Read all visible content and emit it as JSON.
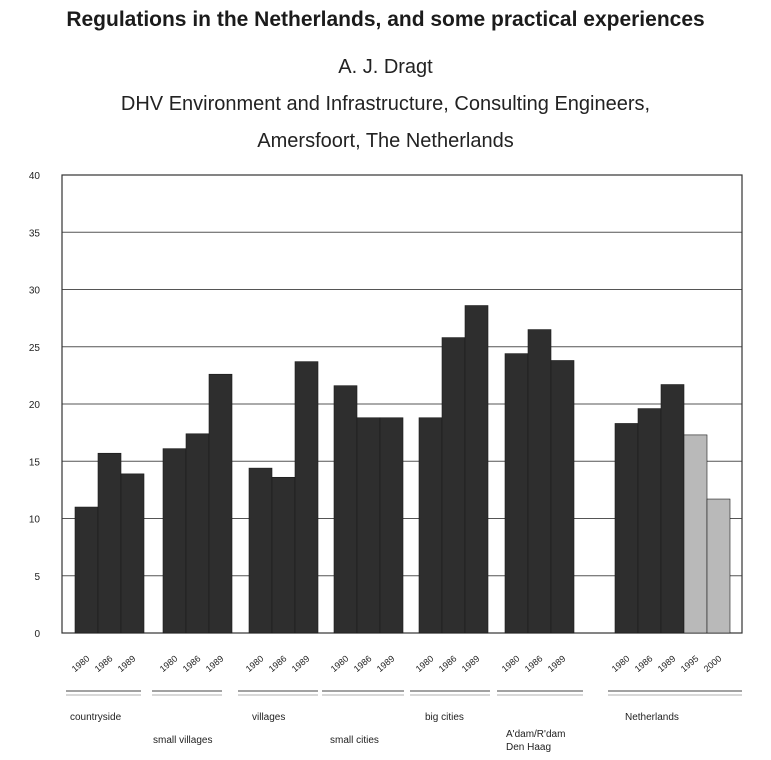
{
  "header": {
    "title": "Regulations in the Netherlands, and some practical experiences",
    "author": "A. J. Dragt",
    "affiliation_line1": "DHV Environment and Infrastructure, Consulting Engineers,",
    "affiliation_line2": "Amersfoort, The Netherlands"
  },
  "chart_data": {
    "type": "bar",
    "ylim": [
      0,
      40
    ],
    "yticks": [
      0,
      5,
      10,
      15,
      20,
      25,
      30,
      35,
      40
    ],
    "grid": true,
    "colors": {
      "measured": "#2e2e2e",
      "projected": "#b9b9b9"
    },
    "groups": [
      {
        "label": "countryside",
        "bars": [
          {
            "year": "1980",
            "value": 11.0
          },
          {
            "year": "1986",
            "value": 15.7
          },
          {
            "year": "1989",
            "value": 13.9
          }
        ]
      },
      {
        "label": "small villages",
        "bars": [
          {
            "year": "1980",
            "value": 16.1
          },
          {
            "year": "1986",
            "value": 17.4
          },
          {
            "year": "1989",
            "value": 22.6
          }
        ]
      },
      {
        "label": "villages",
        "bars": [
          {
            "year": "1980",
            "value": 14.4
          },
          {
            "year": "1986",
            "value": 13.6
          },
          {
            "year": "1989",
            "value": 23.7
          }
        ]
      },
      {
        "label": "small cities",
        "bars": [
          {
            "year": "1980",
            "value": 21.6
          },
          {
            "year": "1986",
            "value": 18.8
          },
          {
            "year": "1989",
            "value": 18.8
          }
        ]
      },
      {
        "label": "big cities",
        "bars": [
          {
            "year": "1980",
            "value": 18.8
          },
          {
            "year": "1986",
            "value": 25.8
          },
          {
            "year": "1989",
            "value": 28.6
          }
        ]
      },
      {
        "label": "A'dam/R'dam Den Haag",
        "bars": [
          {
            "year": "1980",
            "value": 24.4
          },
          {
            "year": "1986",
            "value": 26.5
          },
          {
            "year": "1989",
            "value": 23.8
          }
        ]
      },
      {
        "label": "Netherlands",
        "bars": [
          {
            "year": "1980",
            "value": 18.3
          },
          {
            "year": "1986",
            "value": 19.6
          },
          {
            "year": "1989",
            "value": 21.7
          },
          {
            "year": "1995",
            "value": 17.3,
            "projected": true
          },
          {
            "year": "2000",
            "value": 11.7,
            "projected": true
          }
        ]
      }
    ]
  }
}
